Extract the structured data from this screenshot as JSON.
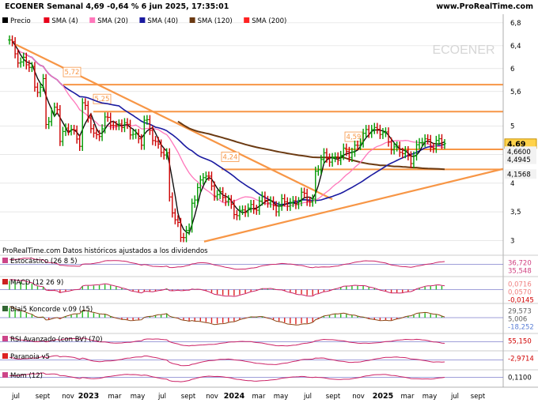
{
  "header": {
    "title": "ECOENER Semanal 4,69 -0,64 % 6 jun 2025, 17:35:01",
    "source": "www.ProRealTime.com"
  },
  "colors": {
    "price_up": "#009900",
    "price_down": "#cc0000",
    "sma4": "#e8001a",
    "sma20": "#ff77bb",
    "sma40": "#1a1aa0",
    "sma120": "#6b3a12",
    "sma200": "#ff2222",
    "trendline": "#f79646",
    "grid": "#d9d9d9"
  },
  "legend": [
    {
      "label": "Precio",
      "color": "#000000"
    },
    {
      "label": "SMA (4)",
      "color": "#e8001a"
    },
    {
      "label": "SMA (20)",
      "color": "#ff77bb"
    },
    {
      "label": "SMA (40)",
      "color": "#1a1aa0"
    },
    {
      "label": "SMA (120)",
      "color": "#6b3a12"
    },
    {
      "label": "SMA (200)",
      "color": "#ff2222"
    }
  ],
  "watermark": "ECOENER",
  "footnote": "ProRealTime.com Datos históricos ajustados a los dividendos",
  "chart_data": {
    "type": "line",
    "instrument": "ECOENER",
    "y_axis": {
      "ylim": [
        2.88,
        6.95
      ],
      "ticks": [
        "6,8",
        "6,4",
        "6",
        "5,6",
        "5",
        "4,5",
        "4",
        "3,5",
        "3"
      ],
      "tick_values": [
        6.8,
        6.4,
        6.0,
        5.6,
        5.0,
        4.5,
        4.0,
        3.5,
        3.0
      ]
    },
    "x_axis": {
      "labels": [
        "jul",
        "sept",
        "nov",
        "2023",
        "mar",
        "may",
        "jul",
        "sept",
        "nov",
        "2024",
        "mar",
        "may",
        "jul",
        "sept",
        "nov",
        "2025",
        "mar",
        "may",
        "jul",
        "sept"
      ],
      "bold_labels": [
        "2023",
        "2024",
        "2025"
      ]
    },
    "price_anchors": {
      "x": [
        "2022-07",
        "2022-07",
        "2022-08",
        "2022-08",
        "2022-09",
        "2022-09",
        "2022-10",
        "2022-10",
        "2022-11",
        "2022-11",
        "2022-12",
        "2023-01",
        "2023-01",
        "2023-02",
        "2023-03",
        "2023-04",
        "2023-04",
        "2023-05",
        "2023-05",
        "2023-06",
        "2023-06",
        "2023-07",
        "2023-08",
        "2023-08",
        "2023-09",
        "2023-09",
        "2023-10",
        "2023-10",
        "2023-11",
        "2023-12",
        "2024-01",
        "2024-02",
        "2024-03",
        "2024-04",
        "2024-05",
        "2024-06",
        "2024-07",
        "2024-08",
        "2024-08",
        "2024-09",
        "2024-10",
        "2024-11",
        "2024-12",
        "2025-01",
        "2025-01",
        "2025-02",
        "2025-03",
        "2025-04",
        "2025-05",
        "2025-06"
      ],
      "close": [
        5.7,
        6.45,
        6.1,
        6.2,
        5.9,
        5.65,
        5.8,
        5.0,
        5.4,
        4.8,
        4.95,
        4.7,
        5.4,
        4.8,
        5.1,
        4.95,
        5.1,
        4.85,
        4.95,
        4.7,
        5.1,
        4.75,
        4.4,
        3.8,
        3.2,
        3.05,
        3.15,
        3.7,
        4.15,
        3.85,
        3.65,
        3.45,
        3.6,
        3.7,
        3.6,
        3.65,
        3.75,
        3.7,
        4.2,
        4.45,
        4.45,
        4.55,
        4.75,
        5.1,
        4.95,
        4.8,
        4.55,
        4.45,
        4.75,
        4.69
      ]
    },
    "series": [
      {
        "name": "Precio",
        "kind": "bars",
        "last": 4.69
      },
      {
        "name": "SMA (4)",
        "last": 4.66
      },
      {
        "name": "SMA (20)",
        "last": 4.6
      },
      {
        "name": "SMA (40)",
        "last": 4.4945
      },
      {
        "name": "SMA (120)",
        "last": 4.1568
      },
      {
        "name": "SMA (200)",
        "last": null
      }
    ],
    "horizontal_levels": [
      {
        "value": 5.72,
        "label": "5,72"
      },
      {
        "value": 5.25,
        "label": "5,25"
      },
      {
        "value": 4.59,
        "label": "4,59"
      },
      {
        "value": 4.24,
        "label": "4,24"
      }
    ],
    "right_labels": [
      {
        "value": 4.69,
        "text": "4,69"
      },
      {
        "value": 4.6,
        "text": "4,6600"
      },
      {
        "value": 4.5,
        "text": "4,4945"
      },
      {
        "value": 4.16,
        "text": "4,1568"
      }
    ],
    "indicators": [
      {
        "name": "Estocástico (26 8 5)",
        "values": [
          "36,720",
          "35,548"
        ]
      },
      {
        "name": "MACD (12 26 9)",
        "values": [
          "0,0716",
          "0,0570",
          "-0,0145"
        ]
      },
      {
        "name": "Blai5 Koncorde v.09 (15)",
        "values": [
          "29,573",
          "5,006",
          "-18,252"
        ]
      },
      {
        "name": "RSI Avanzado (con BV) (70)",
        "values": [
          "55,150"
        ]
      },
      {
        "name": "Paranoia v5",
        "values": [
          "-2,9714"
        ]
      },
      {
        "name": "Mom (12)",
        "values": [
          "0,1100"
        ]
      }
    ]
  }
}
